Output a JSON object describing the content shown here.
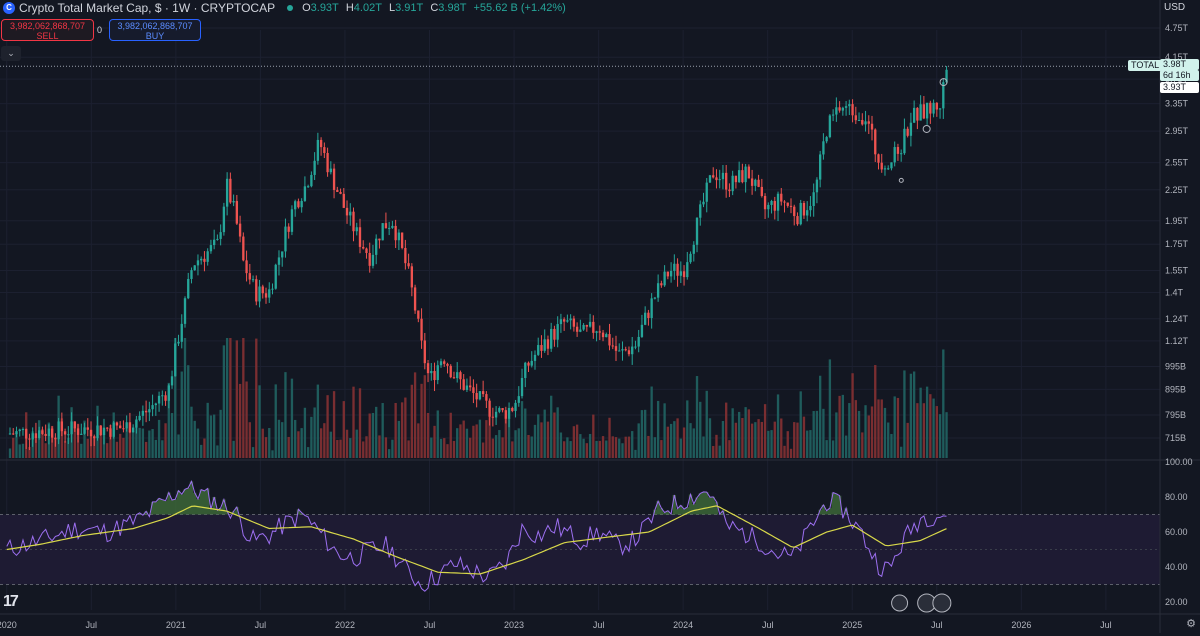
{
  "header": {
    "logo_letter": "C",
    "symbol": "Crypto Total Market Cap, $ · 1W · CRYPTOCAP",
    "ohlc": [
      {
        "k": "O",
        "v": "3.93T"
      },
      {
        "k": "H",
        "v": "4.02T"
      },
      {
        "k": "L",
        "v": "3.91T"
      },
      {
        "k": "C",
        "v": "3.98T"
      }
    ],
    "change": "+55.62 B (+1.42%)"
  },
  "trade": {
    "sell_price": "3,982,062,868,707",
    "sell_label": "SELL",
    "buy_price": "3,982,062,868,707",
    "buy_label": "BUY",
    "spread": "0",
    "collapse_icon": "⌄"
  },
  "currency": "USD",
  "settings_icon": "⚙",
  "logo_mark": "17",
  "colors": {
    "up": "#26a69a",
    "down": "#ef5350",
    "up_vol": "#1f5c5c",
    "down_vol": "#7a2e31",
    "rsi": "#9c6ff0",
    "rsi_ma": "#d8d84a",
    "rsi_band": "#1e1b33",
    "bg": "#131722"
  },
  "price_labels": {
    "series": "TOTAL",
    "last": "3.98T",
    "countdown": "6d 16h",
    "low": "3.93T"
  },
  "chart_data": {
    "type": "candlestick",
    "scale": "log",
    "price_axis_ticks": [
      "4.75T",
      "4.15T",
      "3.75T",
      "3.35T",
      "2.95T",
      "2.55T",
      "2.25T",
      "1.95T",
      "1.75T",
      "1.55T",
      "1.4T",
      "1.24T",
      "1.12T",
      "995B",
      "895B",
      "795B",
      "715B"
    ],
    "price_axis_values": [
      4.75,
      4.15,
      3.75,
      3.35,
      2.95,
      2.55,
      2.25,
      1.95,
      1.75,
      1.55,
      1.4,
      1.24,
      1.12,
      0.995,
      0.895,
      0.795,
      0.715
    ],
    "rsi_axis_ticks": [
      "100.00",
      "80.00",
      "60.00",
      "40.00",
      "20.00"
    ],
    "rsi_axis_values": [
      100,
      80,
      60,
      40,
      20
    ],
    "rsi_bands": [
      30,
      70
    ],
    "time_ticks": [
      "2020",
      "Jul",
      "2021",
      "Jul",
      "2022",
      "Jul",
      "2023",
      "Jul",
      "2024",
      "Jul",
      "2025",
      "Jul",
      "2026",
      "Jul"
    ],
    "time_values": [
      2020.0,
      2020.5,
      2021.0,
      2021.5,
      2022.0,
      2022.5,
      2023.0,
      2023.5,
      2024.0,
      2024.5,
      2025.0,
      2025.5,
      2026.0,
      2026.5
    ],
    "x_range": [
      2019.96,
      2026.82
    ],
    "weekly_close_path_T": [
      [
        2020.0,
        0.73
      ],
      [
        2020.25,
        0.74
      ],
      [
        2020.45,
        0.745
      ],
      [
        2020.7,
        0.75
      ],
      [
        2020.85,
        0.82
      ],
      [
        2020.96,
        0.9
      ],
      [
        2021.05,
        1.3
      ],
      [
        2021.1,
        1.6
      ],
      [
        2021.15,
        1.65
      ],
      [
        2021.25,
        1.75
      ],
      [
        2021.3,
        2.3
      ],
      [
        2021.35,
        2.0
      ],
      [
        2021.4,
        1.6
      ],
      [
        2021.47,
        1.4
      ],
      [
        2021.55,
        1.4
      ],
      [
        2021.62,
        1.7
      ],
      [
        2021.7,
        2.1
      ],
      [
        2021.77,
        2.3
      ],
      [
        2021.85,
        2.8
      ],
      [
        2021.92,
        2.4
      ],
      [
        2022.0,
        2.05
      ],
      [
        2022.08,
        1.8
      ],
      [
        2022.15,
        1.65
      ],
      [
        2022.22,
        1.9
      ],
      [
        2022.28,
        1.95
      ],
      [
        2022.38,
        1.5
      ],
      [
        2022.45,
        1.1
      ],
      [
        2022.5,
        0.93
      ],
      [
        2022.58,
        1.05
      ],
      [
        2022.65,
        0.95
      ],
      [
        2022.75,
        0.88
      ],
      [
        2022.85,
        0.82
      ],
      [
        2022.93,
        0.8
      ],
      [
        2023.0,
        0.83
      ],
      [
        2023.08,
        1.0
      ],
      [
        2023.17,
        1.1
      ],
      [
        2023.3,
        1.22
      ],
      [
        2023.4,
        1.15
      ],
      [
        2023.5,
        1.2
      ],
      [
        2023.62,
        1.05
      ],
      [
        2023.72,
        1.1
      ],
      [
        2023.82,
        1.35
      ],
      [
        2023.92,
        1.55
      ],
      [
        2024.0,
        1.55
      ],
      [
        2024.08,
        1.9
      ],
      [
        2024.18,
        2.45
      ],
      [
        2024.28,
        2.3
      ],
      [
        2024.38,
        2.45
      ],
      [
        2024.48,
        2.05
      ],
      [
        2024.58,
        2.15
      ],
      [
        2024.68,
        2.0
      ],
      [
        2024.78,
        2.2
      ],
      [
        2024.85,
        3.0
      ],
      [
        2024.93,
        3.3
      ],
      [
        2025.0,
        3.25
      ],
      [
        2025.08,
        3.15
      ],
      [
        2025.15,
        2.6
      ],
      [
        2025.22,
        2.55
      ],
      [
        2025.28,
        2.7
      ],
      [
        2025.35,
        3.15
      ],
      [
        2025.45,
        3.25
      ],
      [
        2025.52,
        3.35
      ],
      [
        2025.56,
        3.98
      ]
    ],
    "rsi_path": [
      [
        2020.0,
        50
      ],
      [
        2020.2,
        55
      ],
      [
        2020.4,
        62
      ],
      [
        2020.6,
        60
      ],
      [
        2020.8,
        68
      ],
      [
        2020.95,
        79
      ],
      [
        2021.05,
        86
      ],
      [
        2021.15,
        82
      ],
      [
        2021.25,
        76
      ],
      [
        2021.35,
        72
      ],
      [
        2021.45,
        55
      ],
      [
        2021.55,
        58
      ],
      [
        2021.65,
        65
      ],
      [
        2021.75,
        70
      ],
      [
        2021.85,
        60
      ],
      [
        2021.95,
        48
      ],
      [
        2022.05,
        45
      ],
      [
        2022.15,
        50
      ],
      [
        2022.25,
        52
      ],
      [
        2022.35,
        40
      ],
      [
        2022.45,
        30
      ],
      [
        2022.55,
        35
      ],
      [
        2022.65,
        42
      ],
      [
        2022.75,
        38
      ],
      [
        2022.85,
        34
      ],
      [
        2022.95,
        42
      ],
      [
        2023.05,
        62
      ],
      [
        2023.15,
        58
      ],
      [
        2023.25,
        63
      ],
      [
        2023.4,
        55
      ],
      [
        2023.5,
        60
      ],
      [
        2023.62,
        52
      ],
      [
        2023.72,
        56
      ],
      [
        2023.85,
        72
      ],
      [
        2023.95,
        76
      ],
      [
        2024.05,
        80
      ],
      [
        2024.15,
        84
      ],
      [
        2024.25,
        64
      ],
      [
        2024.35,
        60
      ],
      [
        2024.45,
        55
      ],
      [
        2024.55,
        48
      ],
      [
        2024.65,
        45
      ],
      [
        2024.75,
        62
      ],
      [
        2024.85,
        78
      ],
      [
        2024.93,
        75
      ],
      [
        2025.05,
        60
      ],
      [
        2025.15,
        42
      ],
      [
        2025.22,
        38
      ],
      [
        2025.3,
        55
      ],
      [
        2025.4,
        68
      ],
      [
        2025.5,
        70
      ],
      [
        2025.56,
        70
      ]
    ],
    "rsi_ma_path": [
      [
        2020.0,
        50
      ],
      [
        2020.2,
        53
      ],
      [
        2020.45,
        58
      ],
      [
        2020.75,
        62
      ],
      [
        2020.95,
        68
      ],
      [
        2021.1,
        75
      ],
      [
        2021.3,
        72
      ],
      [
        2021.55,
        62
      ],
      [
        2021.8,
        63
      ],
      [
        2022.05,
        56
      ],
      [
        2022.3,
        46
      ],
      [
        2022.55,
        37
      ],
      [
        2022.8,
        36
      ],
      [
        2023.05,
        44
      ],
      [
        2023.3,
        54
      ],
      [
        2023.55,
        57
      ],
      [
        2023.8,
        60
      ],
      [
        2024.05,
        72
      ],
      [
        2024.2,
        75
      ],
      [
        2024.45,
        62
      ],
      [
        2024.65,
        51
      ],
      [
        2024.85,
        60
      ],
      [
        2025.0,
        64
      ],
      [
        2025.2,
        52
      ],
      [
        2025.4,
        55
      ],
      [
        2025.56,
        62
      ]
    ]
  }
}
